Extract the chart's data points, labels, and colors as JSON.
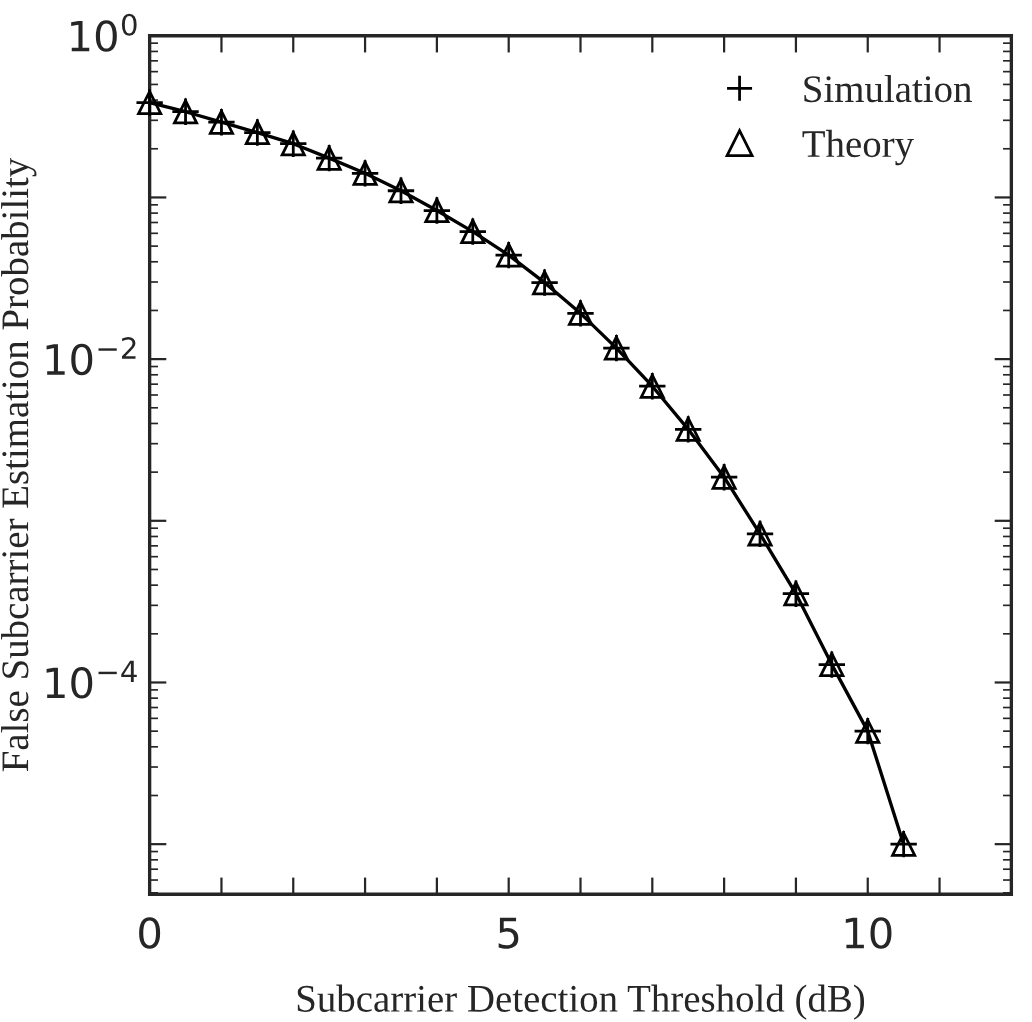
{
  "chart_data": {
    "type": "line",
    "xlabel": "Subcarrier Detection Threshold (dB)",
    "ylabel": "False Subcarrier Estimation Probability",
    "x": [
      0,
      0.5,
      1,
      1.5,
      2,
      2.5,
      3,
      3.5,
      4,
      4.5,
      5,
      5.5,
      6,
      6.5,
      7,
      7.5,
      8,
      8.5,
      9,
      9.5,
      10,
      10.5
    ],
    "series": [
      {
        "name": "Simulation",
        "type": "scatter",
        "marker": "cross",
        "color": "#000000",
        "values": [
          0.386,
          0.339,
          0.292,
          0.252,
          0.215,
          0.175,
          0.141,
          0.11,
          0.083,
          0.0615,
          0.044,
          0.0297,
          0.0192,
          0.0117,
          0.0068,
          0.00368,
          0.00186,
          0.00083,
          0.000354,
          0.000129,
          5e-05,
          1e-05
        ]
      },
      {
        "name": "Theory",
        "marker": "triangle",
        "line_style": "solid",
        "color": "#000000",
        "values": [
          0.386,
          0.339,
          0.292,
          0.252,
          0.215,
          0.175,
          0.141,
          0.11,
          0.083,
          0.0615,
          0.044,
          0.0297,
          0.0192,
          0.0117,
          0.0068,
          0.00368,
          0.00186,
          0.00083,
          0.000354,
          0.000129,
          5e-05,
          1e-05
        ]
      }
    ],
    "log": "y",
    "xlim": [
      0,
      12
    ],
    "ylim": [
      4.9e-06,
      1
    ],
    "xticks": [
      0,
      {
        "value": 1,
        "label": null
      },
      {
        "value": 2,
        "label": null
      },
      {
        "value": 3,
        "label": null
      },
      {
        "value": 4,
        "label": null
      },
      5,
      {
        "value": 6,
        "label": null
      },
      {
        "value": 7,
        "label": null
      },
      {
        "value": 8,
        "label": null
      },
      {
        "value": 9,
        "label": null
      },
      10,
      {
        "value": 11,
        "label": null
      },
      {
        "value": 12,
        "label": null
      }
    ],
    "yticks": [
      {
        "value": 1,
        "label": "10$^{0}$"
      },
      {
        "value": 0.1,
        "label": null
      },
      {
        "value": 0.01,
        "label": "10$^{−2}$"
      },
      {
        "value": 0.001,
        "label": null
      },
      {
        "value": 0.0001,
        "label": "10$^{−4}$"
      },
      {
        "value": 1e-05,
        "label": null
      }
    ],
    "grid": false,
    "legend": "top right"
  }
}
